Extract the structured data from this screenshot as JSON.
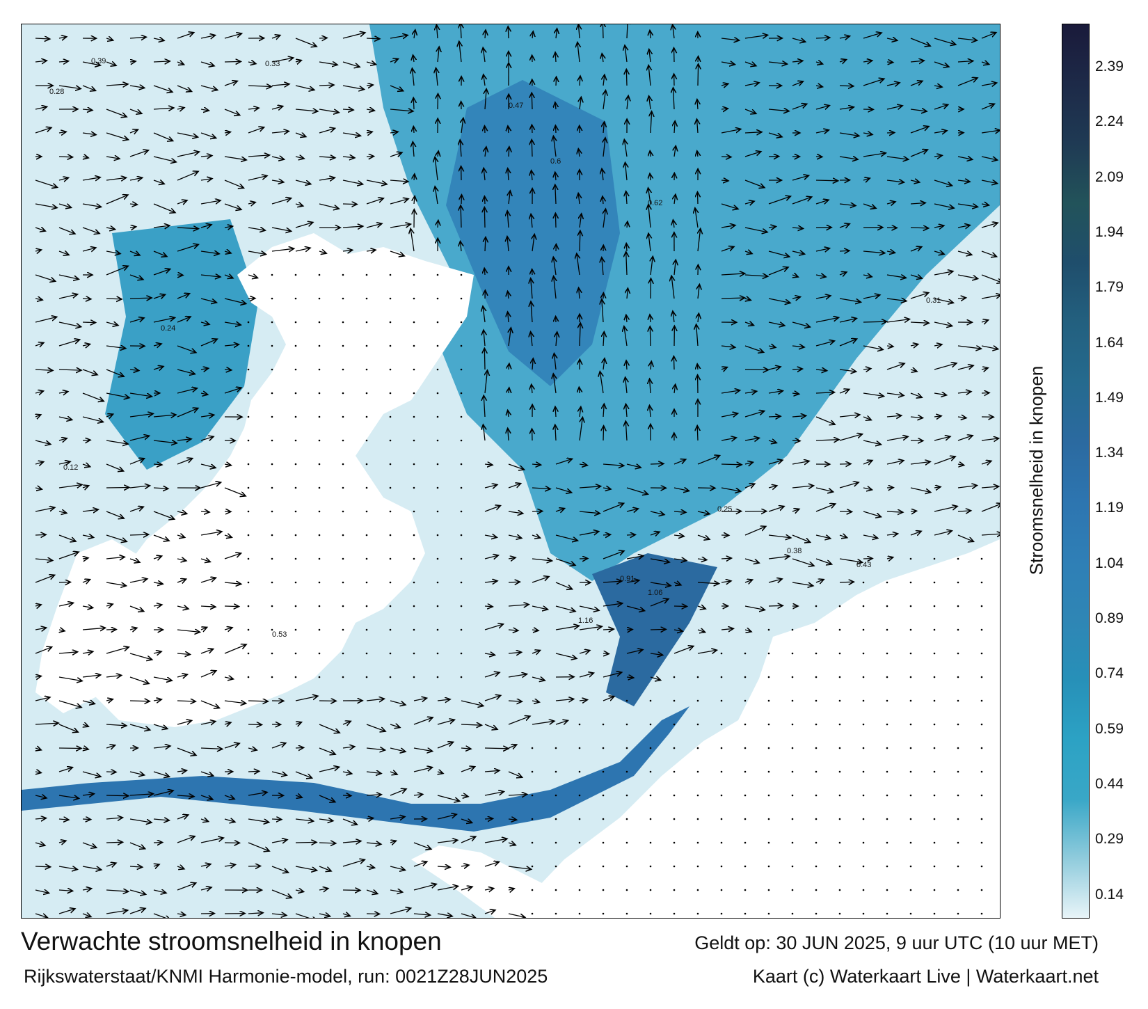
{
  "map": {
    "title": "Verwachte stroomsnelheid in knopen",
    "valid_time": "Geldt op: 30 JUN 2025, 9 uur UTC (10 uur MET)",
    "model_run": "Rijkswaterstaat/KNMI Harmonie-model, run: 0021Z28JUN2025",
    "credit": "Kaart (c) Waterkaart Live | Waterkaart.net",
    "sample_labels": [
      {
        "text": "0.39"
      },
      {
        "text": "0.28"
      },
      {
        "text": "0.33"
      },
      {
        "text": "0.47"
      },
      {
        "text": "0.6"
      },
      {
        "text": "0.62"
      },
      {
        "text": "0.91"
      },
      {
        "text": "1.06"
      },
      {
        "text": "1.16"
      },
      {
        "text": "0.25"
      },
      {
        "text": "0.38"
      },
      {
        "text": "0.43"
      },
      {
        "text": "0.24"
      },
      {
        "text": "0.53"
      },
      {
        "text": "0.31"
      },
      {
        "text": "0.12"
      }
    ]
  },
  "legend": {
    "title": "Stroomsnelheid in knopen",
    "ticks": [
      "2.39",
      "2.24",
      "2.09",
      "1.94",
      "1.79",
      "1.64",
      "1.49",
      "1.34",
      "1.19",
      "1.04",
      "0.89",
      "0.74",
      "0.59",
      "0.44",
      "0.29",
      "0.14"
    ],
    "colors": [
      "#1a1a3a",
      "#1d2a48",
      "#1f3a54",
      "#22535a",
      "#1f4e6c",
      "#23607f",
      "#256a8e",
      "#2b6aa0",
      "#2d75b0",
      "#2f7fb6",
      "#2f86b5",
      "#2790b8",
      "#2ca2c4",
      "#39a7c7",
      "#8fcbdc",
      "#e8f4f8"
    ]
  }
}
